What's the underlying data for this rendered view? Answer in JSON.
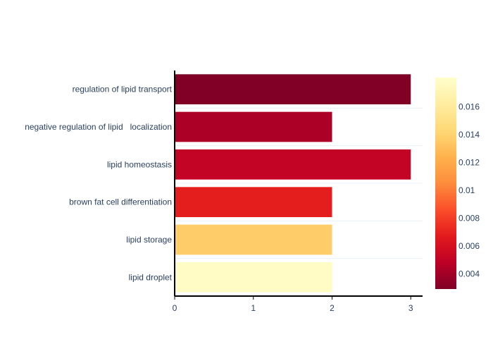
{
  "chart_data": {
    "type": "bar",
    "orientation": "horizontal",
    "categories": [
      "regulation of lipid transport",
      "negative regulation of lipid   localization",
      "lipid homeostasis",
      "brown fat cell differentiation",
      "lipid storage",
      "lipid droplet"
    ],
    "values": [
      3,
      2,
      3,
      2,
      2,
      2
    ],
    "color_values": [
      0.0029,
      0.0043,
      0.0051,
      0.0068,
      0.0137,
      0.0178
    ],
    "xlim": [
      0,
      3.15
    ],
    "x_ticks": [
      "0",
      "1",
      "2",
      "3"
    ],
    "grid": "horizontal row dividers",
    "colorbar": {
      "colorscale": "YlOrRd (reversed)",
      "min": 0.0029,
      "max": 0.0181,
      "ticks": [
        0.004,
        0.006,
        0.008,
        0.01,
        0.012,
        0.014,
        0.016
      ],
      "tick_labels": [
        "0.004",
        "0.006",
        "0.008",
        "0.01",
        "0.012",
        "0.014",
        "0.016"
      ],
      "placement": "right"
    }
  }
}
